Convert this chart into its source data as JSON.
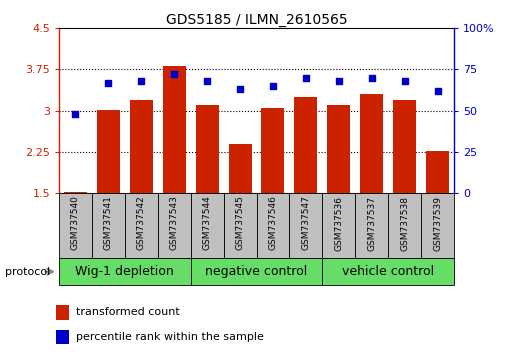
{
  "title": "GDS5185 / ILMN_2610565",
  "samples": [
    "GSM737540",
    "GSM737541",
    "GSM737542",
    "GSM737543",
    "GSM737544",
    "GSM737545",
    "GSM737546",
    "GSM737547",
    "GSM737536",
    "GSM737537",
    "GSM737538",
    "GSM737539"
  ],
  "bar_values": [
    1.51,
    3.02,
    3.2,
    3.82,
    3.1,
    2.4,
    3.05,
    3.25,
    3.1,
    3.3,
    3.2,
    2.27
  ],
  "dot_values": [
    48,
    67,
    68,
    72,
    68,
    63,
    65,
    70,
    68,
    70,
    68,
    62
  ],
  "ylim": [
    1.5,
    4.5
  ],
  "y2lim": [
    0,
    100
  ],
  "yticks": [
    1.5,
    2.25,
    3.0,
    3.75,
    4.5
  ],
  "ytick_labels": [
    "1.5",
    "2.25",
    "3",
    "3.75",
    "4.5"
  ],
  "y2ticks": [
    0,
    25,
    50,
    75,
    100
  ],
  "y2tick_labels": [
    "0",
    "25",
    "50",
    "75",
    "100%"
  ],
  "bar_color": "#cc2200",
  "dot_color": "#0000cc",
  "grid_yticks": [
    2.25,
    3.0,
    3.75
  ],
  "groups": [
    {
      "label": "Wig-1 depletion",
      "start": 0,
      "end": 3
    },
    {
      "label": "negative control",
      "start": 4,
      "end": 7
    },
    {
      "label": "vehicle control",
      "start": 8,
      "end": 11
    }
  ],
  "group_bg_color": "#66dd66",
  "sample_bg_color": "#c0c0c0",
  "protocol_label": "protocol",
  "legend_bar_label": "transformed count",
  "legend_dot_label": "percentile rank within the sample",
  "title_fontsize": 10,
  "tick_fontsize": 8,
  "sample_fontsize": 6.5,
  "group_fontsize": 9,
  "legend_fontsize": 8
}
